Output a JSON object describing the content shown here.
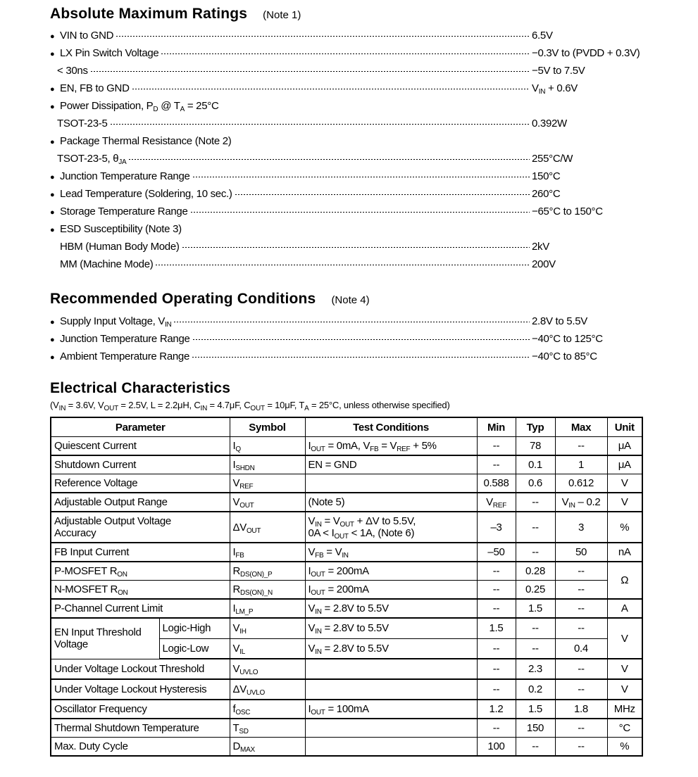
{
  "abs_max": {
    "title": "Absolute Maximum Ratings",
    "note": "(Note 1)",
    "items": [
      {
        "bullet": true,
        "label": [
          "VIN to GND"
        ],
        "value": [
          "6.5V"
        ]
      },
      {
        "bullet": true,
        "label": [
          "LX Pin Switch Voltage"
        ],
        "value": [
          "−0.3V to (PVDD + 0.3V)"
        ]
      },
      {
        "bullet": false,
        "label": [
          "< 30ns"
        ],
        "value": [
          "−5V to 7.5V"
        ]
      },
      {
        "bullet": true,
        "label": [
          "EN, FB to GND"
        ],
        "value": [
          "V",
          {
            "sub": "IN"
          },
          " + 0.6V"
        ]
      },
      {
        "bullet": true,
        "label": [
          "Power Dissipation, P",
          {
            "sub": "D"
          },
          " @ T",
          {
            "sub": "A"
          },
          " = 25°C"
        ],
        "value": null
      },
      {
        "bullet": false,
        "label": [
          "TSOT-23-5"
        ],
        "value": [
          "0.392W"
        ]
      },
      {
        "bullet": true,
        "label": [
          "Package Thermal Resistance   (Note 2)"
        ],
        "value": null
      },
      {
        "bullet": false,
        "label": [
          "TSOT-23-5, θ",
          {
            "sub": "JA"
          }
        ],
        "value": [
          "255°C/W"
        ]
      },
      {
        "bullet": true,
        "label": [
          "Junction Temperature Range"
        ],
        "value": [
          "150°C"
        ]
      },
      {
        "bullet": true,
        "label": [
          "Lead Temperature (Soldering, 10 sec.)"
        ],
        "value": [
          "260°C"
        ]
      },
      {
        "bullet": true,
        "label": [
          "Storage Temperature Range"
        ],
        "value": [
          "−65°C to 150°C"
        ]
      },
      {
        "bullet": true,
        "label": [
          "ESD Susceptibility   (Note 3)"
        ],
        "value": null
      },
      {
        "bullet": false,
        "sub_indent": true,
        "label": [
          "HBM (Human Body Mode)"
        ],
        "value": [
          "2kV"
        ]
      },
      {
        "bullet": false,
        "sub_indent": true,
        "label": [
          "MM (Machine Mode)"
        ],
        "value": [
          "200V"
        ]
      }
    ]
  },
  "rec_op": {
    "title": "Recommended Operating Conditions",
    "note": "(Note 4)",
    "items": [
      {
        "bullet": true,
        "label": [
          "Supply Input Voltage, V",
          {
            "sub": "IN"
          }
        ],
        "value": [
          "2.8V to 5.5V"
        ]
      },
      {
        "bullet": true,
        "label": [
          "Junction Temperature Range"
        ],
        "value": [
          "−40°C to 125°C"
        ]
      },
      {
        "bullet": true,
        "label": [
          "Ambient Temperature Range"
        ],
        "value": [
          "−40°C to 85°C"
        ]
      }
    ]
  },
  "elec": {
    "title": "Electrical Characteristics",
    "conditions": [
      "(V",
      {
        "sub": "IN"
      },
      "  = 3.6V, V",
      {
        "sub": "OUT"
      },
      " = 2.5V, L = 2.2μH, C",
      {
        "sub": "IN"
      },
      " = 4.7μF, C",
      {
        "sub": "OUT"
      },
      " = 10μF, T",
      {
        "sub": "A"
      },
      " = 25°C, unless otherwise specified)"
    ],
    "headers": [
      "Parameter",
      "Symbol",
      "Test Conditions",
      "Min",
      "Typ",
      "Max",
      "Unit"
    ],
    "rows": [
      {
        "param": [
          "Quiescent Current"
        ],
        "symbol": [
          "I",
          {
            "sub": "Q"
          }
        ],
        "test": [
          "I",
          {
            "sub": "OUT"
          },
          " = 0mA, V",
          {
            "sub": "FB"
          },
          " = V",
          {
            "sub": "REF"
          },
          " + 5%"
        ],
        "min": [
          "--"
        ],
        "typ": [
          "78"
        ],
        "max": [
          "--"
        ],
        "unit": [
          "μA"
        ]
      },
      {
        "param": [
          "Shutdown Current"
        ],
        "symbol": [
          "I",
          {
            "sub": "SHDN"
          }
        ],
        "test": [
          "EN = GND"
        ],
        "min": [
          "--"
        ],
        "typ": [
          "0.1"
        ],
        "max": [
          "1"
        ],
        "unit": [
          "μA"
        ]
      },
      {
        "param": [
          "Reference Voltage"
        ],
        "symbol": [
          "V",
          {
            "sub": "REF"
          }
        ],
        "test": [
          ""
        ],
        "min": [
          "0.588"
        ],
        "typ": [
          "0.6"
        ],
        "max": [
          "0.612"
        ],
        "unit": [
          "V"
        ]
      },
      {
        "param": [
          "Adjustable Output Range"
        ],
        "symbol": [
          "V",
          {
            "sub": "OUT"
          }
        ],
        "test": [
          " (Note 5)"
        ],
        "min": [
          "V",
          {
            "sub": "REF"
          }
        ],
        "typ": [
          "--"
        ],
        "max": [
          "V",
          {
            "sub": "IN"
          },
          " – 0.2"
        ],
        "unit": [
          "V"
        ]
      },
      {
        "param": [
          "Adjustable Output Voltage",
          {
            "br": true
          },
          "Accuracy"
        ],
        "symbol": [
          "ΔV",
          {
            "sub": "OUT"
          }
        ],
        "test": [
          "V",
          {
            "sub": "IN"
          },
          " = V",
          {
            "sub": "OUT"
          },
          " + ΔV to 5.5V,",
          {
            "br": true
          },
          "0A < I",
          {
            "sub": "OUT"
          },
          " < 1A,   (Note 6)"
        ],
        "min": [
          "–3"
        ],
        "typ": [
          "--"
        ],
        "max": [
          "3"
        ],
        "unit": [
          "%"
        ]
      },
      {
        "param": [
          "FB Input Current"
        ],
        "symbol": [
          "I",
          {
            "sub": "FB"
          }
        ],
        "test": [
          "V",
          {
            "sub": "FB"
          },
          " = V",
          {
            "sub": "IN"
          }
        ],
        "min": [
          "–50"
        ],
        "typ": [
          "--"
        ],
        "max": [
          "50"
        ],
        "unit": [
          "nA"
        ]
      },
      {
        "param": [
          "P-MOSFET R",
          {
            "sub": "ON"
          }
        ],
        "symbol": [
          "R",
          {
            "sub": "DS(ON)_P"
          }
        ],
        "test": [
          "I",
          {
            "sub": "OUT"
          },
          " = 200mA"
        ],
        "min": [
          "--"
        ],
        "typ": [
          "0.28"
        ],
        "max": [
          "--"
        ],
        "unit": [
          "Ω"
        ]
      },
      {
        "param": [
          "N-MOSFET R",
          {
            "sub": "ON"
          }
        ],
        "symbol": [
          "R",
          {
            "sub": "DS(ON)_N"
          }
        ],
        "test": [
          "I",
          {
            "sub": "OUT"
          },
          " = 200mA"
        ],
        "min": [
          "--"
        ],
        "typ": [
          "0.25"
        ],
        "max": [
          "--"
        ]
      },
      {
        "param": [
          "P-Channel Current Limit"
        ],
        "symbol": [
          "I",
          {
            "sub": "LM_P"
          }
        ],
        "test": [
          "V",
          {
            "sub": "IN"
          },
          " = 2.8V to 5.5V"
        ],
        "min": [
          "--"
        ],
        "typ": [
          "1.5"
        ],
        "max": [
          "--"
        ],
        "unit": [
          "A"
        ]
      },
      {
        "param": [
          "EN Input Threshold",
          {
            "br": true
          },
          "Voltage"
        ],
        "subparam": [
          "Logic-High"
        ],
        "symbol": [
          "V",
          {
            "sub": "IH"
          }
        ],
        "test": [
          "V",
          {
            "sub": "IN"
          },
          " = 2.8V to 5.5V"
        ],
        "min": [
          "1.5"
        ],
        "typ": [
          "--"
        ],
        "max": [
          "--"
        ],
        "unit": [
          "V"
        ]
      },
      {
        "subparam": [
          "Logic-Low"
        ],
        "symbol": [
          "V",
          {
            "sub": "IL"
          }
        ],
        "test": [
          "V",
          {
            "sub": "IN"
          },
          " = 2.8V to 5.5V"
        ],
        "min": [
          "--"
        ],
        "typ": [
          "--"
        ],
        "max": [
          "0.4"
        ]
      },
      {
        "param": [
          "Under Voltage Lockout Threshold"
        ],
        "symbol": [
          "V",
          {
            "sub": "UVLO"
          }
        ],
        "test": [
          ""
        ],
        "min": [
          "--"
        ],
        "typ": [
          "2.3"
        ],
        "max": [
          "--"
        ],
        "unit": [
          "V"
        ]
      },
      {
        "param": [
          "Under Voltage Lockout Hysteresis"
        ],
        "symbol": [
          "ΔV",
          {
            "sub": "UVLO"
          }
        ],
        "test": [
          ""
        ],
        "min": [
          "--"
        ],
        "typ": [
          "0.2"
        ],
        "max": [
          "--"
        ],
        "unit": [
          "V"
        ]
      },
      {
        "param": [
          "Oscillator Frequency"
        ],
        "symbol": [
          "f",
          {
            "sub": "OSC"
          }
        ],
        "test": [
          "I",
          {
            "sub": "OUT"
          },
          " = 100mA"
        ],
        "min": [
          "1.2"
        ],
        "typ": [
          "1.5"
        ],
        "max": [
          "1.8"
        ],
        "unit": [
          "MHz"
        ]
      },
      {
        "param": [
          "Thermal Shutdown Temperature"
        ],
        "symbol": [
          "T",
          {
            "sub": "SD"
          }
        ],
        "test": [
          ""
        ],
        "min": [
          "--"
        ],
        "typ": [
          "150"
        ],
        "max": [
          "--"
        ],
        "unit": [
          "°C"
        ]
      },
      {
        "param": [
          "Max. Duty Cycle"
        ],
        "symbol": [
          "D",
          {
            "sub": "MAX"
          }
        ],
        "test": [
          ""
        ],
        "min": [
          "100"
        ],
        "typ": [
          "--"
        ],
        "max": [
          "--"
        ],
        "unit": [
          "%"
        ]
      }
    ]
  }
}
